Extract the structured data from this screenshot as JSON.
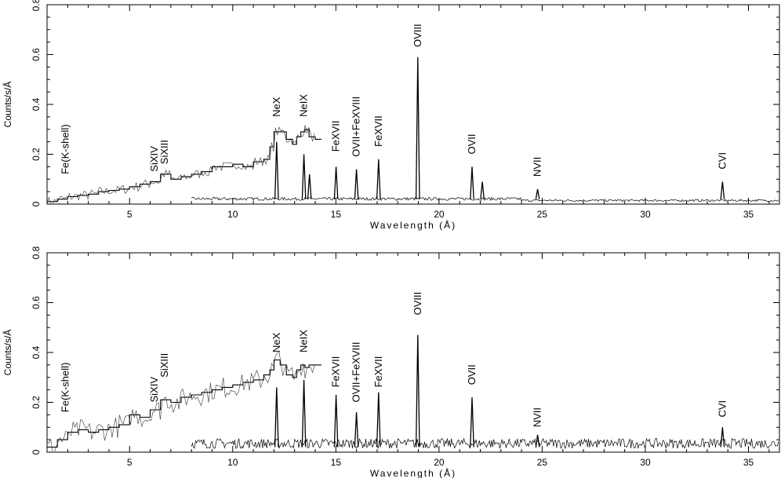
{
  "chart_data": [
    {
      "type": "line",
      "panel": "top",
      "xlabel": "Wavelength (Å)",
      "ylabel": "Counts/s/Å",
      "xlim": [
        1.0,
        36.5
      ],
      "ylim": [
        0,
        0.8
      ],
      "xticks": [
        5,
        10,
        15,
        20,
        25,
        30,
        35
      ],
      "yticks": [
        0,
        0.2,
        0.4,
        0.6,
        0.8
      ],
      "grid": false,
      "series": [
        {
          "style": "step",
          "x": [
            1.0,
            1.5,
            2.0,
            2.5,
            3.0,
            3.5,
            4.0,
            4.5,
            5.0,
            5.5,
            6.0,
            6.5,
            7.0,
            7.5,
            8.0,
            8.5,
            9.0,
            9.5,
            10.0,
            10.5,
            11.0,
            11.5,
            11.8,
            12.0,
            12.3,
            12.6,
            12.9,
            13.1,
            13.3,
            13.5,
            13.7,
            14.0
          ],
          "y": [
            0.01,
            0.02,
            0.03,
            0.035,
            0.04,
            0.05,
            0.055,
            0.06,
            0.07,
            0.08,
            0.09,
            0.12,
            0.1,
            0.11,
            0.12,
            0.13,
            0.15,
            0.15,
            0.16,
            0.15,
            0.17,
            0.18,
            0.23,
            0.29,
            0.29,
            0.26,
            0.24,
            0.27,
            0.29,
            0.3,
            0.27,
            0.26
          ]
        },
        {
          "style": "line",
          "peaks": [
            {
              "x": 12.13,
              "y": 0.25
            },
            {
              "x": 13.45,
              "y": 0.2
            },
            {
              "x": 13.72,
              "y": 0.12
            },
            {
              "x": 15.01,
              "y": 0.15
            },
            {
              "x": 16.0,
              "y": 0.14
            },
            {
              "x": 17.07,
              "y": 0.18
            },
            {
              "x": 18.97,
              "y": 0.59
            },
            {
              "x": 21.6,
              "y": 0.15
            },
            {
              "x": 22.1,
              "y": 0.09
            },
            {
              "x": 24.78,
              "y": 0.06
            },
            {
              "x": 33.74,
              "y": 0.09
            }
          ]
        }
      ],
      "annotations": [
        {
          "text": "Fe(K-shell)",
          "x": 1.9
        },
        {
          "text": "SiXIV",
          "x": 6.2
        },
        {
          "text": "SiXIII",
          "x": 6.7
        },
        {
          "text": "NeX",
          "x": 12.13
        },
        {
          "text": "NeIX",
          "x": 13.45
        },
        {
          "text": "FeXVII",
          "x": 15.01
        },
        {
          "text": "OVII+FeXVIII",
          "x": 16.0
        },
        {
          "text": "FeXVII",
          "x": 17.07
        },
        {
          "text": "OVIII",
          "x": 18.97
        },
        {
          "text": "OVII",
          "x": 21.6
        },
        {
          "text": "NVII",
          "x": 24.78
        },
        {
          "text": "CVI",
          "x": 33.74
        }
      ]
    },
    {
      "type": "line",
      "panel": "bottom",
      "xlabel": "Wavelength (Å)",
      "ylabel": "Counts/s/Å",
      "xlim": [
        1.0,
        36.5
      ],
      "ylim": [
        0,
        0.8
      ],
      "xticks": [
        5,
        10,
        15,
        20,
        25,
        30,
        35
      ],
      "yticks": [
        0,
        0.2,
        0.4,
        0.6,
        0.8
      ],
      "grid": false,
      "series": [
        {
          "style": "step",
          "x": [
            1.0,
            1.5,
            2.0,
            2.5,
            3.0,
            3.5,
            4.0,
            4.5,
            5.0,
            5.5,
            6.0,
            6.5,
            7.0,
            7.5,
            8.0,
            8.5,
            9.0,
            9.5,
            10.0,
            10.5,
            11.0,
            11.5,
            11.8,
            12.0,
            12.3,
            12.6,
            12.9,
            13.1,
            13.3,
            13.5,
            13.7,
            14.0
          ],
          "y": [
            0.02,
            0.05,
            0.08,
            0.09,
            0.08,
            0.09,
            0.1,
            0.11,
            0.15,
            0.14,
            0.17,
            0.21,
            0.2,
            0.22,
            0.23,
            0.24,
            0.25,
            0.26,
            0.27,
            0.28,
            0.29,
            0.31,
            0.33,
            0.37,
            0.35,
            0.31,
            0.3,
            0.33,
            0.35,
            0.34,
            0.35,
            0.35
          ]
        },
        {
          "style": "line",
          "peaks": [
            {
              "x": 12.13,
              "y": 0.26
            },
            {
              "x": 13.45,
              "y": 0.29
            },
            {
              "x": 15.01,
              "y": 0.23
            },
            {
              "x": 16.0,
              "y": 0.16
            },
            {
              "x": 17.07,
              "y": 0.24
            },
            {
              "x": 18.97,
              "y": 0.47
            },
            {
              "x": 21.6,
              "y": 0.22
            },
            {
              "x": 24.78,
              "y": 0.07
            },
            {
              "x": 33.74,
              "y": 0.1
            }
          ]
        }
      ],
      "annotations": [
        {
          "text": "Fe(K-shell)",
          "x": 1.9
        },
        {
          "text": "SiXIV",
          "x": 6.2
        },
        {
          "text": "SiXIII",
          "x": 6.7
        },
        {
          "text": "NeX",
          "x": 12.13
        },
        {
          "text": "NeIX",
          "x": 13.45
        },
        {
          "text": "FeXVII",
          "x": 15.01
        },
        {
          "text": "OVII+FeXVIII",
          "x": 16.0
        },
        {
          "text": "FeXVII",
          "x": 17.07
        },
        {
          "text": "OVIII",
          "x": 18.97
        },
        {
          "text": "OVII",
          "x": 21.6
        },
        {
          "text": "NVII",
          "x": 24.78
        },
        {
          "text": "CVI",
          "x": 33.74
        }
      ]
    }
  ]
}
